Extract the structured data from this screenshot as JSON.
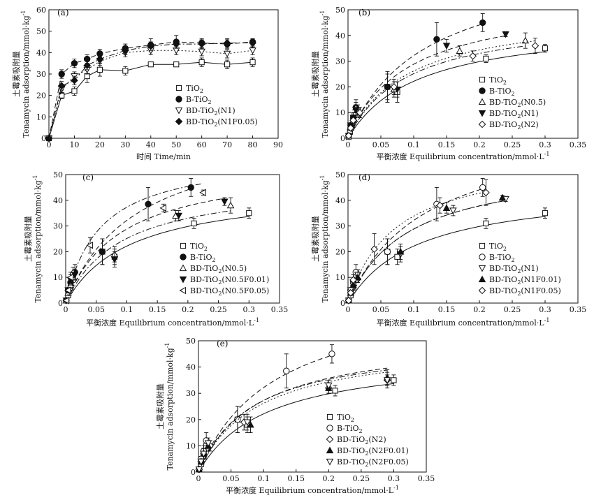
{
  "chart_data": [
    {
      "type": "line",
      "panel": "(a)",
      "xlabel": "时间 Time/min",
      "ylabel_cn": "土霉素吸附量",
      "ylabel": "Tenamycin adsorption/mmol·kg",
      "ylabel_sup": "-1",
      "xlim": [
        0,
        90
      ],
      "ylim": [
        0,
        60
      ],
      "xticks": [
        0,
        10,
        20,
        30,
        40,
        50,
        60,
        70,
        80,
        90
      ],
      "yticks": [
        0,
        10,
        20,
        30,
        40,
        50,
        60
      ],
      "legend_position": "center-right",
      "series": [
        {
          "name": "TiO2",
          "marker": "square-open",
          "line": "solid",
          "x": [
            0,
            5,
            10,
            15,
            20,
            30,
            40,
            50,
            60,
            70,
            80
          ],
          "y": [
            0,
            20,
            22,
            29,
            32,
            31.5,
            34.5,
            34.5,
            35.5,
            34.5,
            35.5
          ],
          "err": [
            0,
            1.5,
            2,
            3,
            3,
            2,
            1,
            1,
            2,
            2,
            2
          ]
        },
        {
          "name": "B-TiO2",
          "marker": "circle-filled",
          "line": "dash",
          "x": [
            0,
            5,
            10,
            15,
            20,
            30,
            40,
            50,
            60,
            70,
            80
          ],
          "y": [
            0,
            30,
            35,
            37,
            39.5,
            42,
            43.5,
            45,
            44.5,
            44,
            45
          ],
          "err": [
            0,
            2,
            2,
            2,
            2,
            2,
            3,
            3,
            2,
            2,
            1.5
          ]
        },
        {
          "name": "BD-TiO2(N1)",
          "marker": "triangle-down-open",
          "line": "dot",
          "x": [
            0,
            5,
            10,
            15,
            20,
            30,
            40,
            50,
            60,
            70,
            80
          ],
          "y": [
            0,
            23,
            29,
            32,
            36,
            40,
            41,
            41,
            40.5,
            39.5,
            41
          ],
          "err": [
            0,
            2,
            2,
            2,
            2,
            2,
            2,
            2,
            2,
            2,
            2
          ]
        },
        {
          "name": "BD-TiO2(N1F0.05)",
          "marker": "diamond-filled",
          "line": "dashdot",
          "x": [
            0,
            5,
            10,
            15,
            20,
            30,
            40,
            50,
            60,
            70,
            80
          ],
          "y": [
            0,
            24.5,
            27,
            34,
            37,
            41,
            43,
            44,
            44,
            44.5,
            44.5
          ],
          "err": [
            0,
            2,
            2,
            2,
            2,
            2,
            2,
            2,
            2,
            2,
            2
          ]
        }
      ]
    },
    {
      "type": "scatter",
      "panel": "(b)",
      "xlabel": "平衡浓度 Equilibrium concentration/mmol·L",
      "xlabel_sup": "-1",
      "ylabel_cn": "土霉素吸附量",
      "ylabel": "Tenamycin adsorption/mmol·kg",
      "ylabel_sup": "-1",
      "xlim": [
        0,
        0.35
      ],
      "ylim": [
        0,
        50
      ],
      "xticks": [
        0,
        0.05,
        0.1,
        0.15,
        0.2,
        0.25,
        0.3,
        0.35
      ],
      "yticks": [
        0,
        10,
        20,
        30,
        40,
        50
      ],
      "legend_position": "center-right",
      "series": [
        {
          "name": "TiO2",
          "marker": "square-open",
          "line": "solid",
          "qmax": 45.5,
          "K": 9.5,
          "x": [
            0.001,
            0.003,
            0.006,
            0.01,
            0.015,
            0.06,
            0.075,
            0.21,
            0.3
          ],
          "y": [
            0.5,
            2.5,
            5,
            9,
            11,
            20,
            18,
            31,
            35
          ],
          "err": [
            0.5,
            1,
            1,
            2,
            2,
            5,
            4,
            1.5,
            1.5
          ]
        },
        {
          "name": "B-TiO2",
          "marker": "circle-filled",
          "line": "dash",
          "qmax": 70,
          "K": 8.5,
          "x": [
            0.001,
            0.004,
            0.008,
            0.012,
            0.06,
            0.135,
            0.205
          ],
          "y": [
            1,
            5,
            8,
            12,
            20,
            38.5,
            45
          ],
          "err": [
            0.5,
            1,
            2,
            3,
            6,
            6.5,
            3.5
          ]
        },
        {
          "name": "BD-TiO2(N0.5)",
          "marker": "triangle-up-open",
          "line": "dashdot",
          "qmax": 48,
          "K": 11,
          "x": [
            0.001,
            0.004,
            0.008,
            0.012,
            0.07,
            0.17,
            0.27
          ],
          "y": [
            1,
            4,
            7,
            12,
            19,
            34,
            38
          ],
          "err": [
            0.5,
            1,
            2,
            2,
            3,
            2,
            3
          ]
        },
        {
          "name": "BD-TiO2(N1)",
          "marker": "triangle-down-filled",
          "line": "dash",
          "qmax": 55,
          "K": 11,
          "x": [
            0.001,
            0.004,
            0.008,
            0.012,
            0.075,
            0.15,
            0.24
          ],
          "y": [
            1,
            5,
            8,
            11,
            19,
            36,
            40.5
          ],
          "err": [
            0.5,
            1,
            2,
            2,
            3,
            2.5,
            1
          ]
        },
        {
          "name": "BD-TiO2(N2)",
          "marker": "diamond-open",
          "line": "dot",
          "qmax": 50,
          "K": 11,
          "x": [
            0.001,
            0.004,
            0.008,
            0.018,
            0.07,
            0.19,
            0.285
          ],
          "y": [
            1,
            4,
            7,
            10,
            20,
            32,
            36
          ],
          "err": [
            0.5,
            1,
            2,
            2,
            3,
            2,
            3
          ]
        }
      ]
    },
    {
      "type": "scatter",
      "panel": "(c)",
      "xlabel": "平衡浓度 Equilibrium concentration/mmol·L",
      "xlabel_sup": "-1",
      "ylabel_cn": "土霉素吸附量",
      "ylabel": "Tenamycin adsorption/mmol·kg",
      "ylabel_sup": "-1",
      "xlim": [
        0,
        0.35
      ],
      "ylim": [
        0,
        50
      ],
      "xticks": [
        0,
        0.05,
        0.1,
        0.15,
        0.2,
        0.25,
        0.3,
        0.35
      ],
      "yticks": [
        0,
        10,
        20,
        30,
        40,
        50
      ],
      "legend_position": "center-right",
      "series": [
        {
          "name": "TiO2",
          "marker": "square-open",
          "line": "solid",
          "qmax": 45.5,
          "K": 9.5,
          "x": [
            0.001,
            0.004,
            0.008,
            0.012,
            0.06,
            0.08,
            0.21,
            0.3
          ],
          "y": [
            1,
            3,
            6,
            10,
            20,
            18,
            31,
            35
          ],
          "err": [
            0.5,
            1,
            2,
            2,
            5,
            3,
            2,
            2
          ]
        },
        {
          "name": "B-TiO2",
          "marker": "circle-filled",
          "line": "dash",
          "qmax": 70,
          "K": 8.5,
          "x": [
            0.001,
            0.004,
            0.008,
            0.015,
            0.06,
            0.135,
            0.205
          ],
          "y": [
            1,
            5,
            8,
            12,
            20,
            38.5,
            45
          ],
          "err": [
            0.5,
            1,
            2,
            3,
            5,
            6.5,
            3.5
          ]
        },
        {
          "name": "BD-TiO2(N0.5)",
          "marker": "triangle-up-open",
          "line": "dashdot",
          "qmax": 48,
          "K": 11,
          "x": [
            0.001,
            0.004,
            0.008,
            0.012,
            0.08,
            0.18,
            0.27
          ],
          "y": [
            1,
            4,
            7,
            12,
            19,
            34,
            38
          ],
          "err": [
            0.5,
            1,
            2,
            2,
            3,
            2,
            3
          ]
        },
        {
          "name": "BD-TiO2(N0.5F0.01)",
          "marker": "triangle-down-filled",
          "line": "dash",
          "qmax": 55,
          "K": 11,
          "x": [
            0.001,
            0.004,
            0.008,
            0.015,
            0.08,
            0.185,
            0.26
          ],
          "y": [
            1,
            5,
            9,
            11,
            17,
            34,
            39.5
          ],
          "err": [
            0.5,
            1,
            2,
            2,
            3,
            2,
            1.5
          ]
        },
        {
          "name": "BD-TiO2(N0.5F0.05)",
          "marker": "triangle-left-open",
          "line": "dashdot",
          "qmax": 58,
          "K": 18,
          "x": [
            0.001,
            0.004,
            0.008,
            0.04,
            0.16,
            0.225
          ],
          "y": [
            1,
            5,
            10,
            22.5,
            37,
            43
          ],
          "err": [
            0.5,
            1,
            2,
            3,
            1.5,
            1
          ]
        }
      ]
    },
    {
      "type": "scatter",
      "panel": "(d)",
      "xlabel": "平衡浓度 Equilibrium concentration/mmol·L",
      "xlabel_sup": "-1",
      "ylabel_cn": "土霉素吸附量",
      "ylabel": "Tenamycin adsorption/mmol·kg",
      "ylabel_sup": "-1",
      "xlim": [
        0,
        0.35
      ],
      "ylim": [
        0,
        50
      ],
      "xticks": [
        0,
        0.05,
        0.1,
        0.15,
        0.2,
        0.25,
        0.3,
        0.35
      ],
      "yticks": [
        0,
        10,
        20,
        30,
        40,
        50
      ],
      "legend_position": "center-right",
      "series": [
        {
          "name": "TiO2",
          "marker": "square-open",
          "line": "solid",
          "qmax": 45.5,
          "K": 9.5,
          "x": [
            0.001,
            0.004,
            0.008,
            0.012,
            0.06,
            0.075,
            0.21,
            0.3
          ],
          "y": [
            1,
            3,
            6,
            10,
            20,
            18,
            31,
            35
          ],
          "err": [
            0.5,
            1,
            2,
            2,
            5,
            3,
            2,
            2
          ]
        },
        {
          "name": "B-TiO2",
          "marker": "circle-open",
          "line": "dash",
          "qmax": 70,
          "K": 8.5,
          "x": [
            0.001,
            0.004,
            0.008,
            0.012,
            0.06,
            0.135,
            0.205
          ],
          "y": [
            1,
            5,
            8,
            12,
            20,
            38.5,
            45
          ],
          "err": [
            0.5,
            1,
            2,
            3,
            5,
            6.5,
            3.5
          ]
        },
        {
          "name": "BD-TiO2(N1)",
          "marker": "triangle-down-open",
          "line": "dashdot",
          "qmax": 55,
          "K": 11,
          "x": [
            0.001,
            0.004,
            0.008,
            0.015,
            0.08,
            0.16,
            0.24
          ],
          "y": [
            1,
            5,
            8,
            11,
            19,
            36,
            40.5
          ],
          "err": [
            0.5,
            1,
            2,
            2,
            3,
            2,
            1
          ]
        },
        {
          "name": "BD-TiO2(N1F0.01)",
          "marker": "triangle-up-filled",
          "line": "dash",
          "qmax": 55,
          "K": 11,
          "x": [
            0.001,
            0.004,
            0.008,
            0.015,
            0.08,
            0.15,
            0.235
          ],
          "y": [
            1,
            4,
            7,
            10,
            20,
            37,
            41
          ],
          "err": [
            0.5,
            1,
            2,
            2,
            3,
            2,
            1
          ]
        },
        {
          "name": "BD-TiO2(N1F0.05)",
          "marker": "diamond-open",
          "line": "dot",
          "qmax": 58,
          "K": 14,
          "x": [
            0.001,
            0.004,
            0.008,
            0.04,
            0.14,
            0.21
          ],
          "y": [
            1,
            4,
            9,
            21,
            38,
            43
          ],
          "err": [
            0.5,
            1,
            2,
            6,
            3,
            5
          ]
        }
      ]
    },
    {
      "type": "scatter",
      "panel": "(e)",
      "xlabel": "平衡浓度 Equilibrium concentration/mmol·L",
      "xlabel_sup": "-1",
      "ylabel_cn": "土霉素吸附量",
      "ylabel": "Tenamycin adsorption/mmol·kg",
      "ylabel_sup": "-1",
      "xlim": [
        0,
        0.35
      ],
      "ylim": [
        0,
        50
      ],
      "xticks": [
        0,
        0.05,
        0.1,
        0.15,
        0.2,
        0.25,
        0.3,
        0.35
      ],
      "yticks": [
        0,
        10,
        20,
        30,
        40,
        50
      ],
      "legend_position": "bottom-right",
      "series": [
        {
          "name": "TiO2",
          "marker": "square-open",
          "line": "solid",
          "qmax": 45.5,
          "K": 9.5,
          "x": [
            0.001,
            0.004,
            0.008,
            0.012,
            0.06,
            0.075,
            0.21,
            0.3
          ],
          "y": [
            1,
            3,
            6,
            10,
            20,
            18,
            31,
            35
          ],
          "err": [
            0.5,
            1,
            2,
            2,
            5,
            3,
            2,
            2
          ]
        },
        {
          "name": "B-TiO2",
          "marker": "circle-open",
          "line": "dash",
          "qmax": 70,
          "K": 8.5,
          "x": [
            0.001,
            0.004,
            0.008,
            0.012,
            0.06,
            0.135,
            0.205
          ],
          "y": [
            1,
            5,
            8,
            12,
            20,
            38.5,
            45
          ],
          "err": [
            0.5,
            1,
            2,
            3,
            5,
            6.5,
            3.5
          ]
        },
        {
          "name": "BD-TiO2(N2)",
          "marker": "diamond-open",
          "line": "dot",
          "qmax": 50,
          "K": 11,
          "x": [
            0.001,
            0.004,
            0.008,
            0.018,
            0.07,
            0.2,
            0.29
          ],
          "y": [
            1,
            4,
            7,
            10,
            19,
            32,
            35
          ],
          "err": [
            0.5,
            1,
            2,
            2,
            3,
            2,
            2
          ]
        },
        {
          "name": "BD-TiO2(N2F0.01)",
          "marker": "triangle-up-filled",
          "line": "dashdot",
          "qmax": 50,
          "K": 12,
          "x": [
            0.001,
            0.004,
            0.008,
            0.015,
            0.08,
            0.2,
            0.29
          ],
          "y": [
            1,
            4,
            7,
            10,
            18,
            32,
            36
          ],
          "err": [
            0.5,
            1,
            2,
            2,
            3,
            2,
            3
          ]
        },
        {
          "name": "BD-TiO2(N2F0.05)",
          "marker": "triangle-down-open",
          "line": "dash",
          "qmax": 52,
          "K": 11,
          "x": [
            0.001,
            0.004,
            0.008,
            0.015,
            0.075,
            0.2,
            0.29
          ],
          "y": [
            1,
            4,
            7,
            11,
            19,
            33,
            35
          ],
          "err": [
            0.5,
            1,
            2,
            2,
            3,
            2,
            3
          ]
        }
      ]
    }
  ]
}
